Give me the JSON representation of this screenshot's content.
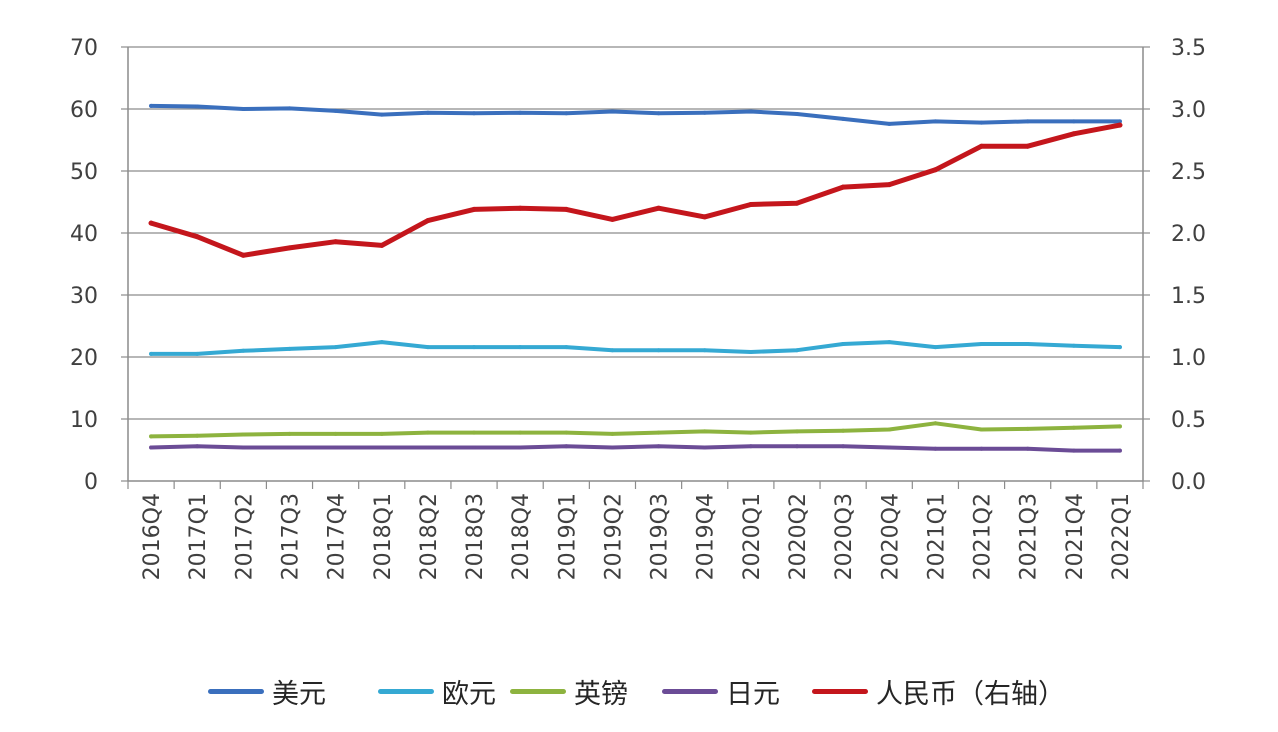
{
  "chart_data": {
    "type": "line",
    "categories": [
      "2016Q4",
      "2017Q1",
      "2017Q2",
      "2017Q3",
      "2017Q4",
      "2018Q1",
      "2018Q2",
      "2018Q3",
      "2018Q4",
      "2019Q1",
      "2019Q2",
      "2019Q3",
      "2019Q4",
      "2020Q1",
      "2020Q2",
      "2020Q3",
      "2020Q4",
      "2021Q1",
      "2021Q2",
      "2021Q3",
      "2021Q4",
      "2022Q1"
    ],
    "left_axis": {
      "ylim": [
        0,
        70
      ],
      "ticks": [
        "0",
        "10",
        "20",
        "30",
        "40",
        "50",
        "60",
        "70"
      ]
    },
    "right_axis": {
      "ylim": [
        0,
        3.5
      ],
      "ticks": [
        "0.0",
        "0.5",
        "1.0",
        "1.5",
        "2.0",
        "2.5",
        "3.0",
        "3.5"
      ]
    },
    "grid": true,
    "legend_position": "bottom",
    "series": [
      {
        "name": "美元",
        "axis": "left",
        "color": "#3a6fbd",
        "values": [
          60.5,
          60.4,
          60.0,
          60.1,
          59.7,
          59.1,
          59.4,
          59.3,
          59.4,
          59.3,
          59.6,
          59.3,
          59.4,
          59.6,
          59.2,
          58.4,
          57.6,
          58.0,
          57.8,
          58.0,
          58.0,
          58.0
        ]
      },
      {
        "name": "欧元",
        "axis": "left",
        "color": "#35a9d3",
        "values": [
          20.5,
          20.5,
          21.0,
          21.3,
          21.6,
          22.4,
          21.6,
          21.6,
          21.6,
          21.6,
          21.1,
          21.1,
          21.1,
          20.8,
          21.1,
          22.1,
          22.4,
          21.6,
          22.1,
          22.1,
          21.8,
          21.6
        ]
      },
      {
        "name": "英镑",
        "axis": "left",
        "color": "#8db33f",
        "values": [
          7.2,
          7.3,
          7.5,
          7.6,
          7.6,
          7.6,
          7.8,
          7.8,
          7.8,
          7.8,
          7.6,
          7.8,
          8.0,
          7.8,
          8.0,
          8.1,
          8.3,
          9.3,
          8.3,
          8.4,
          8.6,
          8.8
        ]
      },
      {
        "name": "日元",
        "axis": "left",
        "color": "#6b4c96",
        "values": [
          5.4,
          5.6,
          5.4,
          5.4,
          5.4,
          5.4,
          5.4,
          5.4,
          5.4,
          5.6,
          5.4,
          5.6,
          5.4,
          5.6,
          5.6,
          5.6,
          5.4,
          5.2,
          5.2,
          5.2,
          4.9,
          4.9
        ]
      },
      {
        "name": "人民币（右轴）",
        "axis": "right",
        "color": "#c4161c",
        "values": [
          2.08,
          1.97,
          1.82,
          1.88,
          1.93,
          1.9,
          2.1,
          2.19,
          2.2,
          2.19,
          2.11,
          2.2,
          2.13,
          2.23,
          2.24,
          2.37,
          2.39,
          2.51,
          2.7,
          2.7,
          2.8,
          2.87
        ]
      }
    ]
  }
}
